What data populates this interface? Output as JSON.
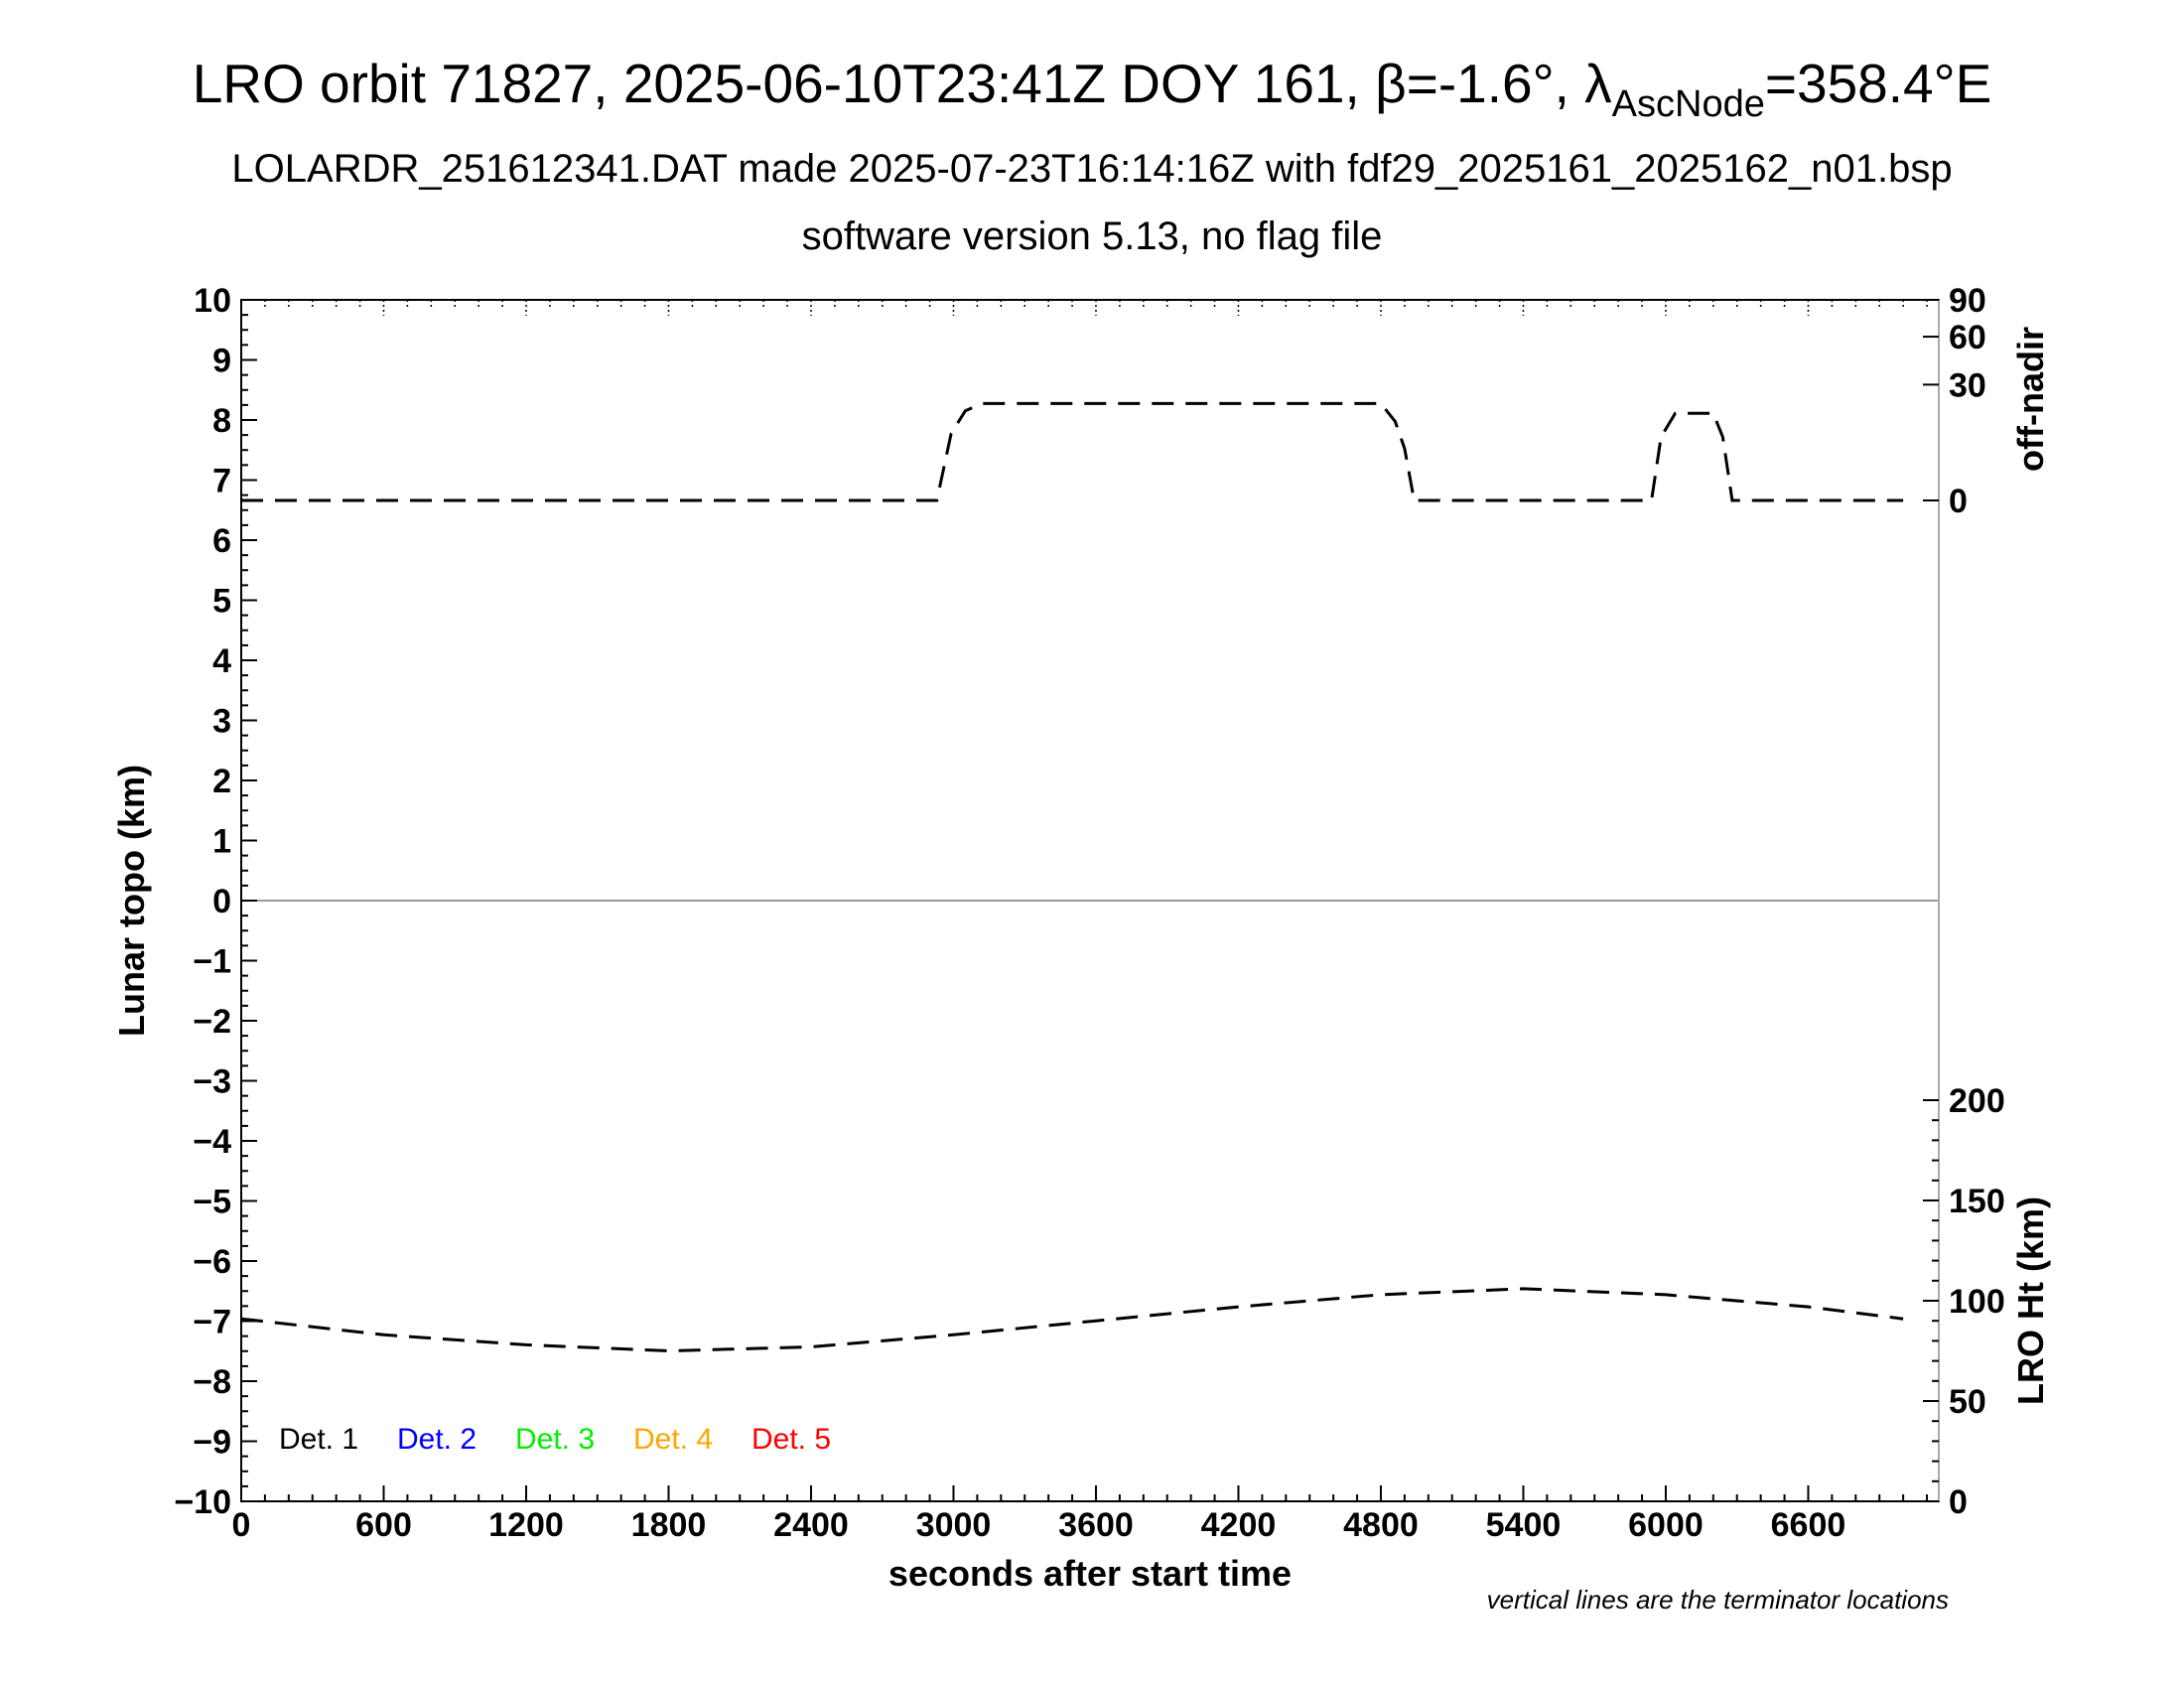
{
  "header": {
    "title_prefix": "LRO orbit 71827, 2025-06-10T23:41Z DOY 161, β=-1.6°, λ",
    "title_sub": "AscNode",
    "title_suffix": "=358.4°E",
    "subtitle": "LOLARDR_251612341.DAT made 2025-07-23T16:14:16Z with fdf29_2025161_2025162_n01.bsp",
    "subtitle2": "software version 5.13, no flag file"
  },
  "chart_data": {
    "type": "line",
    "xlabel": "seconds after start time",
    "ylabel_left": "Lunar topo (km)",
    "ylabel_right_top": "off-nadir",
    "ylabel_right_bottom": "LRO Ht (km)",
    "xlim": [
      0,
      7150
    ],
    "ylim_left": [
      -10,
      10
    ],
    "x_ticks": [
      "0",
      "600",
      "1200",
      "1800",
      "2400",
      "3000",
      "3600",
      "4200",
      "4800",
      "5400",
      "6000",
      "6600"
    ],
    "y_ticks_left": [
      "10",
      "9",
      "8",
      "7",
      "6",
      "5",
      "4",
      "3",
      "2",
      "1",
      "0",
      "−1",
      "−2",
      "−3",
      "−4",
      "−5",
      "−6",
      "−7",
      "−8",
      "−9",
      "−10"
    ],
    "right_top_ticks": [
      "90",
      "60",
      "30",
      "0"
    ],
    "right_bottom_ticks": [
      "200",
      "150",
      "100",
      "50",
      "0"
    ],
    "zero_line": true,
    "legend": {
      "placement": "bottom-left",
      "entries": [
        {
          "label": "Det. 1",
          "color": "#000000"
        },
        {
          "label": "Det. 2",
          "color": "#0000ff"
        },
        {
          "label": "Det. 3",
          "color": "#00ee00"
        },
        {
          "label": "Det. 4",
          "color": "#ffa500"
        },
        {
          "label": "Det. 5",
          "color": "#ff0000"
        }
      ]
    },
    "note": "vertical lines are the terminator locations",
    "series": [
      {
        "axis": "off-nadir",
        "style": "dashed",
        "color": "#000000",
        "x": [
          0,
          600,
          1200,
          1800,
          2400,
          2930,
          2990,
          3050,
          3120,
          3600,
          4200,
          4800,
          4860,
          4900,
          4940,
          5000,
          5400,
          5940,
          5980,
          6040,
          6120,
          6200,
          6240,
          6280,
          6330,
          6600,
          7000
        ],
        "y": [
          0,
          0,
          0,
          0,
          0,
          0,
          10,
          18,
          21,
          21,
          21,
          21,
          14,
          6,
          0,
          0,
          0,
          0,
          9,
          17,
          17,
          17,
          9,
          0,
          0,
          0,
          0
        ]
      },
      {
        "axis": "LRO Ht",
        "style": "dashed",
        "color": "#000000",
        "x": [
          0,
          600,
          1200,
          1800,
          2400,
          3000,
          3600,
          4200,
          4800,
          5400,
          6000,
          6600,
          7000
        ],
        "y": [
          91,
          83,
          78,
          75,
          77,
          83,
          90,
          97,
          103,
          106,
          103,
          97,
          91
        ]
      }
    ]
  }
}
